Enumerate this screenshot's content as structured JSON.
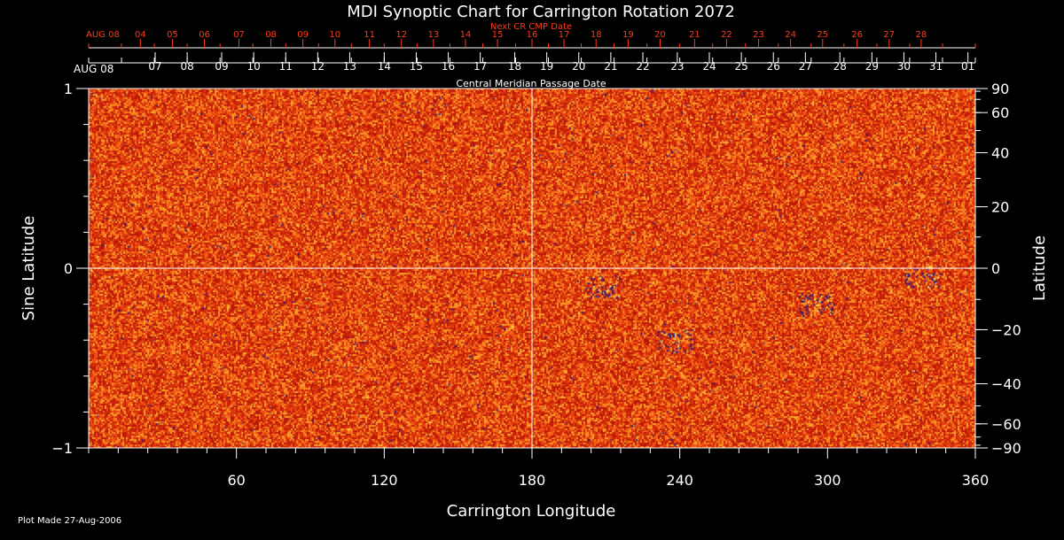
{
  "chart_data": {
    "type": "heatmap",
    "title": "MDI Synoptic Chart for Carrington Rotation 2072",
    "xlabel": "Carrington Longitude",
    "ylabel_left": "Sine Latitude",
    "ylabel_right": "Latitude",
    "xlim": [
      0,
      360
    ],
    "ylim": [
      -1,
      1
    ],
    "x_major_ticks": [
      60,
      120,
      180,
      240,
      300,
      360
    ],
    "x_minor_step": 12,
    "y_left_ticks": [
      {
        "value": 1,
        "label": "1"
      },
      {
        "value": 0,
        "label": "0"
      },
      {
        "value": -1,
        "label": "−1"
      }
    ],
    "y_left_minor_step": 0.2,
    "y_right_ticks": [
      {
        "lat": 90,
        "label": "90"
      },
      {
        "lat": 60,
        "label": "60"
      },
      {
        "lat": 40,
        "label": "40"
      },
      {
        "lat": 20,
        "label": "20"
      },
      {
        "lat": 0,
        "label": "0"
      },
      {
        "lat": -20,
        "label": "−20"
      },
      {
        "lat": -40,
        "label": "−40"
      },
      {
        "lat": -60,
        "label": "−60"
      },
      {
        "lat": -90,
        "label": "−90"
      }
    ],
    "y_right_minor_step_deg": 10,
    "crosshair": {
      "x": 180,
      "y": 0
    },
    "cmp_axis": {
      "label": "Central Meridian Passage Date",
      "start_label": "AUG 08",
      "dates": [
        "01",
        "31",
        "30",
        "29",
        "28",
        "27",
        "26",
        "25",
        "24",
        "23",
        "22",
        "21",
        "20",
        "19",
        "18",
        "17",
        "16",
        "15",
        "14",
        "13",
        "12",
        "11",
        "10",
        "09",
        "08",
        "07"
      ],
      "date_longitudes": [
        357,
        344,
        331,
        318,
        305,
        291,
        278,
        265,
        252,
        239,
        225,
        212,
        199,
        186,
        173,
        159,
        146,
        133,
        120,
        106,
        93,
        80,
        67,
        54,
        40,
        27
      ]
    },
    "next_cr_axis": {
      "label": "Next CR CMP Date",
      "start_label": "AUG 08",
      "dates": [
        "28",
        "27",
        "26",
        "25",
        "24",
        "23",
        "22",
        "21",
        "20",
        "19",
        "18",
        "17",
        "16",
        "15",
        "14",
        "13",
        "12",
        "11",
        "10",
        "09",
        "08",
        "07",
        "06",
        "05",
        "04"
      ],
      "date_longitudes": [
        338,
        325,
        312,
        298,
        285,
        272,
        259,
        246,
        232,
        219,
        206,
        193,
        180,
        166,
        153,
        140,
        127,
        114,
        100,
        87,
        74,
        61,
        47,
        34,
        21
      ]
    },
    "colormap": {
      "base": "#e0300e",
      "palette": [
        "#b81508",
        "#c41f08",
        "#d02a0a",
        "#dc360c",
        "#e8420e",
        "#f05412",
        "#f56a18",
        "#f8861f",
        "#fba32b"
      ],
      "highlight": "#fff07a",
      "negative_polarity": "#1a1a8c",
      "positive_polarity": "#ffe850"
    }
  },
  "footer": {
    "plot_made": "Plot Made 27-Aug-2006"
  },
  "colors": {
    "background": "#000000",
    "foreground": "#ffffff",
    "accent": "#ff3a1a"
  }
}
